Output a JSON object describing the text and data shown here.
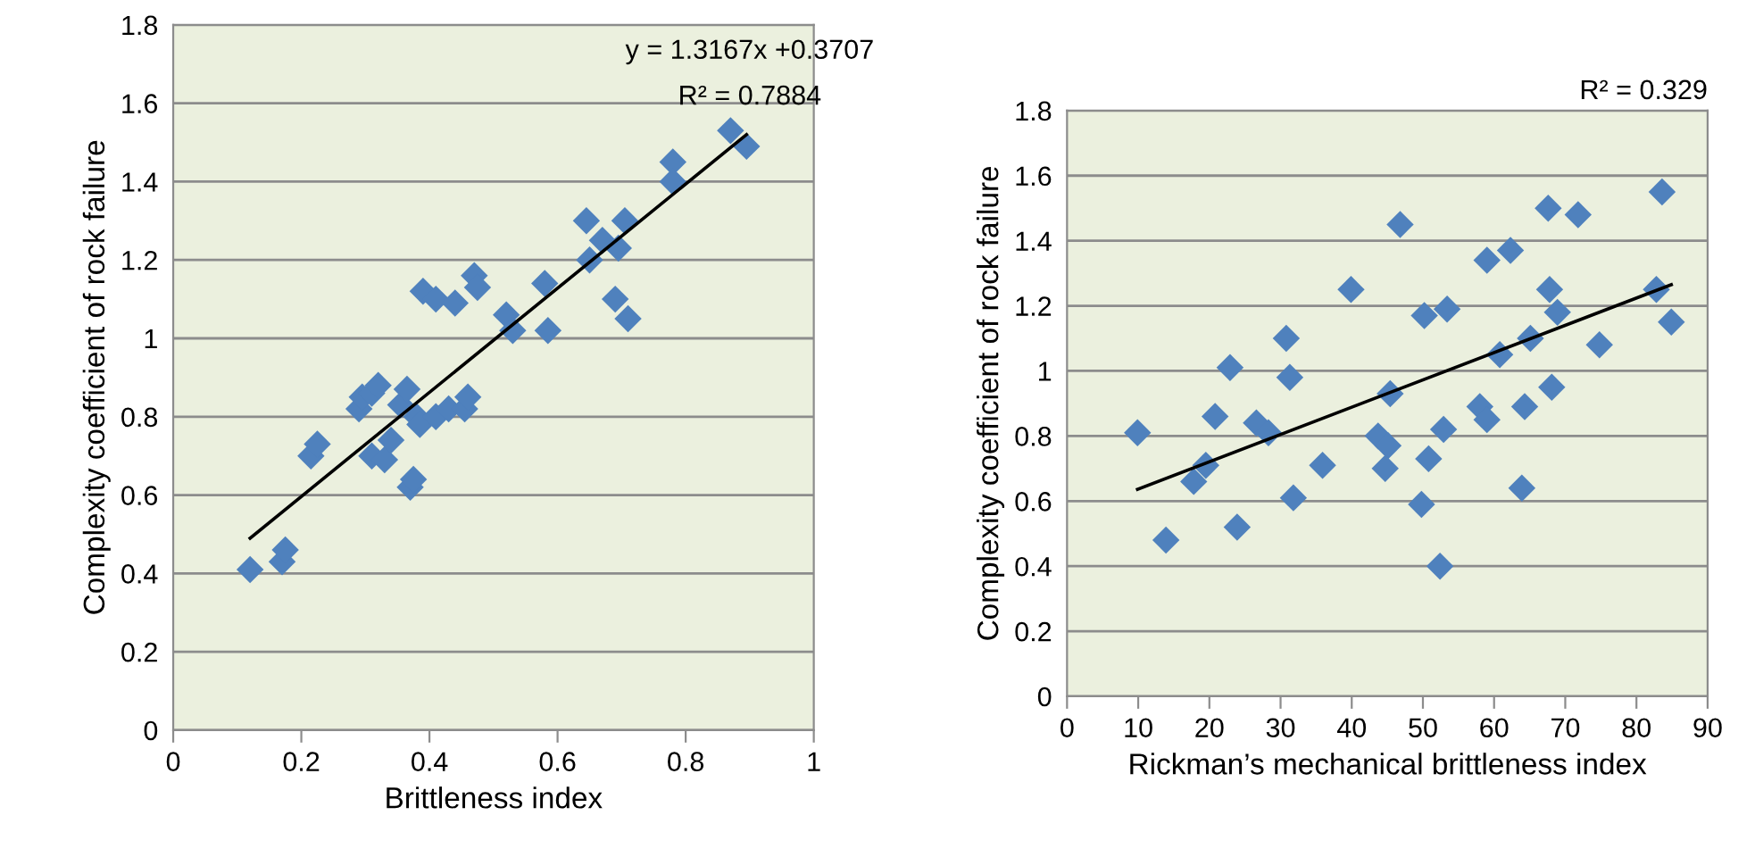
{
  "chart_data": [
    {
      "type": "scatter",
      "xlabel": "Brittleness index",
      "ylabel": "Complexity coefficient of rock failure",
      "annotations": [
        "y = 1.3167x +0.3707",
        "R² = 0.7884"
      ],
      "xlim": [
        0,
        1
      ],
      "xticks": [
        0,
        0.2,
        0.4,
        0.6,
        0.8,
        1
      ],
      "ylim": [
        0,
        1.8
      ],
      "yticks": [
        0,
        0.2,
        0.4,
        0.6,
        0.8,
        1,
        1.2,
        1.4,
        1.6,
        1.8
      ],
      "grid": "y",
      "legend": false,
      "marker": "diamond",
      "series": [
        {
          "color": "#4f81bd",
          "x": [
            0.12,
            0.17,
            0.175,
            0.215,
            0.225,
            0.29,
            0.295,
            0.31,
            0.32,
            0.31,
            0.33,
            0.34,
            0.355,
            0.365,
            0.37,
            0.375,
            0.38,
            0.385,
            0.39,
            0.41,
            0.41,
            0.43,
            0.44,
            0.455,
            0.46,
            0.47,
            0.475,
            0.52,
            0.53,
            0.58,
            0.585,
            0.645,
            0.65,
            0.67,
            0.69,
            0.695,
            0.705,
            0.71,
            0.78,
            0.78,
            0.87,
            0.895
          ],
          "values": [
            0.41,
            0.43,
            0.46,
            0.7,
            0.73,
            0.82,
            0.85,
            0.86,
            0.88,
            0.7,
            0.69,
            0.74,
            0.83,
            0.87,
            0.62,
            0.64,
            0.8,
            0.78,
            1.12,
            1.1,
            0.8,
            0.82,
            1.09,
            0.82,
            0.85,
            1.16,
            1.13,
            1.06,
            1.02,
            1.14,
            1.02,
            1.3,
            1.2,
            1.25,
            1.1,
            1.23,
            1.3,
            1.05,
            1.45,
            1.4,
            1.53,
            1.49
          ]
        },
        {
          "type": "line",
          "color": "#000000",
          "marker": "none",
          "x": [
            0.12,
            0.895
          ],
          "values": [
            0.49,
            1.52
          ]
        }
      ]
    },
    {
      "type": "scatter",
      "xlabel": "Rickman’s mechanical brittleness index",
      "ylabel": "Complexity coefficient of rock failure",
      "annotations": [
        "R² = 0.329"
      ],
      "xlim": [
        0,
        90
      ],
      "xticks": [
        0,
        10,
        20,
        30,
        40,
        50,
        60,
        70,
        80,
        90
      ],
      "ylim": [
        0,
        1.8
      ],
      "yticks": [
        0,
        0.2,
        0.4,
        0.6,
        0.8,
        1,
        1.2,
        1.4,
        1.6,
        1.8
      ],
      "grid": "y",
      "legend": false,
      "marker": "diamond",
      "series": [
        {
          "color": "#4f81bd",
          "x": [
            9.9,
            13.9,
            17.8,
            19.5,
            20.8,
            22.9,
            23.9,
            26.6,
            28.3,
            30.8,
            31.3,
            31.8,
            35.9,
            39.9,
            43.7,
            45.1,
            44.7,
            45.4,
            46.8,
            49.8,
            50.2,
            50.8,
            52.4,
            52.9,
            53.4,
            58.0,
            59.0,
            59.0,
            60.8,
            62.3,
            63.9,
            64.3,
            65.1,
            67.6,
            67.8,
            68.1,
            68.9,
            71.8,
            74.8,
            82.8,
            83.6,
            84.9
          ],
          "values": [
            0.81,
            0.48,
            0.66,
            0.71,
            0.86,
            1.01,
            0.52,
            0.84,
            0.81,
            1.1,
            0.98,
            0.61,
            0.71,
            1.25,
            0.8,
            0.77,
            0.7,
            0.93,
            1.45,
            0.59,
            1.17,
            0.73,
            0.4,
            0.82,
            1.19,
            0.89,
            1.34,
            0.85,
            1.05,
            1.37,
            0.64,
            0.89,
            1.1,
            1.5,
            1.25,
            0.95,
            1.18,
            1.48,
            1.08,
            1.25,
            1.55,
            1.15
          ]
        },
        {
          "type": "line",
          "color": "#000000",
          "marker": "none",
          "x": [
            9.9,
            84.9
          ],
          "values": [
            0.636,
            1.265
          ]
        }
      ]
    }
  ]
}
